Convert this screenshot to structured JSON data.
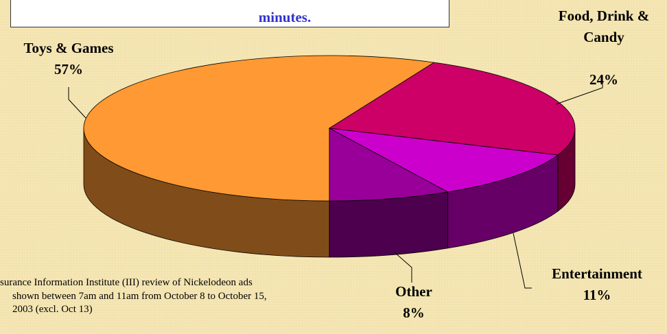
{
  "chart_data": {
    "type": "pie3d",
    "annotation": "minutes.",
    "categories": [
      "Toys & Games",
      "Food, Drink & Candy",
      "Entertainment",
      "Other"
    ],
    "values": [
      57,
      24,
      11,
      8
    ],
    "value_labels": [
      "57%",
      "24%",
      "11%",
      "8%"
    ],
    "colors": [
      "#FF9933",
      "#CC0066",
      "#CC00CC",
      "#990099"
    ],
    "footnote": [
      "surance Information Institute (III) review of Nickelodeon ads",
      "shown between 7am and 11am from October 8 to October 15,",
      "2003 (excl. Oct 13)"
    ]
  }
}
